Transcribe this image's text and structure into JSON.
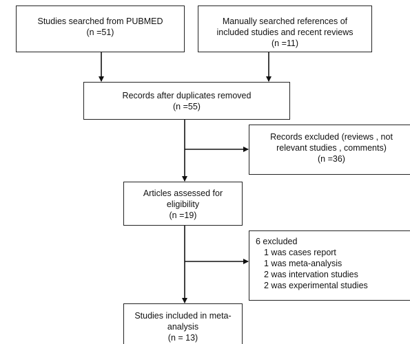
{
  "flowchart": {
    "source_pubmed": {
      "line1": "Studies searched from PUBMED",
      "line2": "(n =51)"
    },
    "source_manual": {
      "line1": "Manually searched references of",
      "line2": "included studies and recent reviews",
      "line3": "(n =11)"
    },
    "after_duplicates": {
      "line1": "Records after duplicates removed",
      "line2": "(n =55)"
    },
    "records_excluded": {
      "line1": "Records excluded (reviews , not",
      "line2": "relevant studies , comments)",
      "line3": "(n =36)"
    },
    "assessed": {
      "line1": "Articles assessed for",
      "line2": "eligibility",
      "line3": "(n =19)"
    },
    "excluded_detail": {
      "header": "6 excluded",
      "items": [
        "1 was cases report",
        "1 was meta-analysis",
        "2 was intervation studies",
        "2 was experimental studies"
      ]
    },
    "included": {
      "line1": "Studies included in meta-",
      "line2": "analysis",
      "line3": "(n = 13)"
    }
  }
}
